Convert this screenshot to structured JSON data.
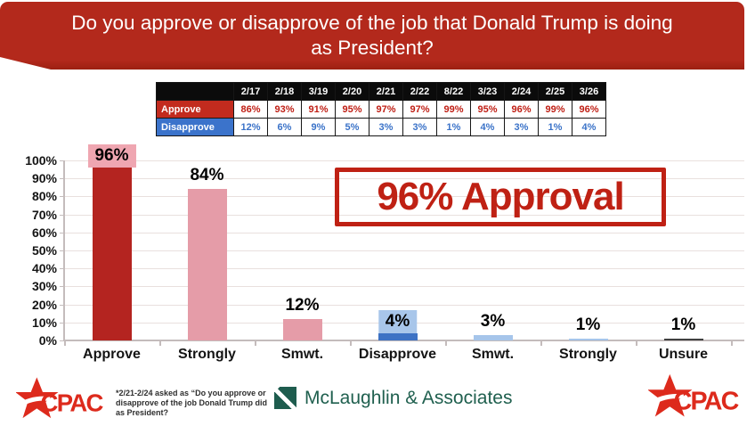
{
  "banner": {
    "question": "Do you approve or disapprove of the job that Donald Trump is doing as President?"
  },
  "poll_table": {
    "columns": [
      "2/17",
      "2/18",
      "3/19",
      "2/20",
      "2/21",
      "2/22",
      "8/22",
      "3/23",
      "2/24",
      "2/25",
      "3/26"
    ],
    "rows": [
      {
        "label": "Approve",
        "label_bg": "#C22B1E",
        "value_color": "#C01F15",
        "values": [
          "86%",
          "93%",
          "91%",
          "95%",
          "97%",
          "97%",
          "99%",
          "95%",
          "96%",
          "99%",
          "96%"
        ]
      },
      {
        "label": "Disapprove",
        "label_bg": "#3B73CB",
        "value_color": "#3A72C8",
        "values": [
          "12%",
          "6%",
          "9%",
          "5%",
          "3%",
          "3%",
          "1%",
          "4%",
          "3%",
          "1%",
          "4%"
        ]
      }
    ]
  },
  "chart_data": {
    "type": "bar",
    "categories": [
      "Approve",
      "Strongly",
      "Smwt.",
      "Disapprove",
      "Smwt.",
      "Strongly",
      "Unsure"
    ],
    "values": [
      96,
      84,
      12,
      4,
      3,
      1,
      1
    ],
    "value_labels": [
      "96%",
      "84%",
      "12%",
      "4%",
      "3%",
      "1%",
      "1%"
    ],
    "bar_colors": [
      "#B42420",
      "#E59CA8",
      "#E59CA8",
      "#3D72C4",
      "#A6C5EA",
      "#A6C5EA",
      "#404040"
    ],
    "label_highlight_colors": [
      "#EFA6B1",
      null,
      null,
      "#A8C6EA",
      null,
      null,
      null
    ],
    "title": "",
    "xlabel": "",
    "ylabel": "",
    "ylim": [
      0,
      100
    ],
    "ytick_step": 10,
    "ytick_suffix": "%",
    "grid": true,
    "legend": false
  },
  "stamp": {
    "text": "96% Approval",
    "color": "#BF2114"
  },
  "footer": {
    "footnote_lines": [
      "*2/21-2/24 asked as “Do you approve or",
      "disapprove of the job Donald Trump did",
      "as President?"
    ],
    "mclaughlin_label": "McLaughlin & Associates",
    "cpac_label": "CPAC"
  },
  "colors": {
    "banner_red": "#B3291C",
    "approve_red": "#B42420",
    "disapprove_blue": "#3D72C4",
    "pink": "#E59CA8",
    "light_blue": "#A6C5EA",
    "unsure_gray": "#404040",
    "mclaughlin_green": "#20604F",
    "cpac_red": "#DD2A1C"
  }
}
